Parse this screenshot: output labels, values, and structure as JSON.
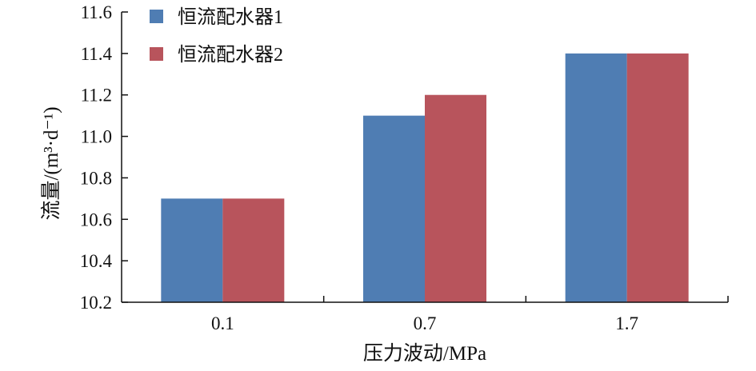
{
  "chart_data": {
    "type": "bar",
    "categories": [
      "0.1",
      "0.7",
      "1.7"
    ],
    "series": [
      {
        "name": "恒流配水器1",
        "color": "#4f7db3",
        "values": [
          10.7,
          11.1,
          11.4
        ]
      },
      {
        "name": "恒流配水器2",
        "color": "#b8545c",
        "values": [
          10.7,
          11.2,
          11.4
        ]
      }
    ],
    "xlabel": "压力波动/MPa",
    "ylabel": "流量/(m³·d⁻¹)",
    "ylim": [
      10.2,
      11.6
    ],
    "yticks": [
      "10.2",
      "10.4",
      "10.6",
      "10.8",
      "11.0",
      "11.2",
      "11.4",
      "11.6"
    ],
    "legend": "top-left",
    "grid": false
  }
}
